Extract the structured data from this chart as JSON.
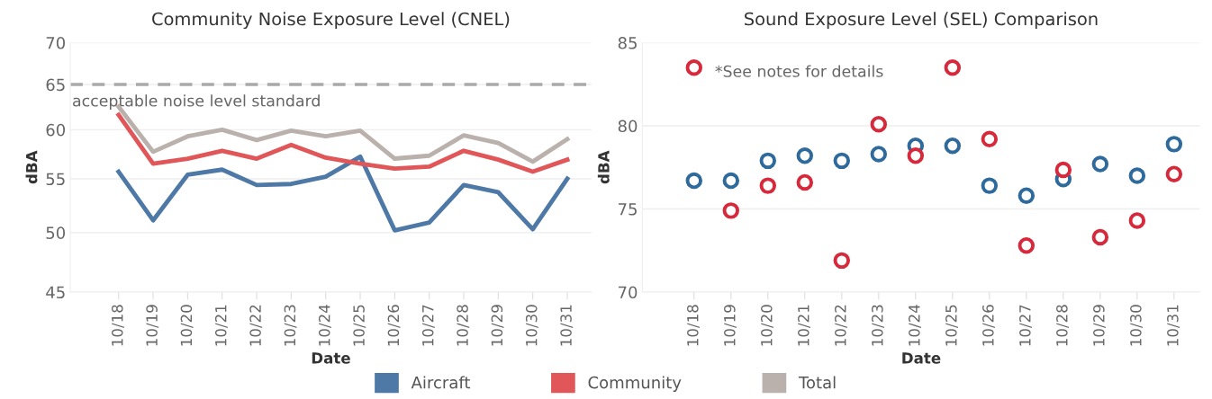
{
  "chart_data": [
    {
      "type": "line",
      "title": "Community Noise Exposure Level (CNEL)",
      "xlabel": "Date",
      "ylabel": "dBA",
      "categories": [
        "10/18",
        "10/19",
        "10/20",
        "10/21",
        "10/22",
        "10/23",
        "10/24",
        "10/25",
        "10/26",
        "10/27",
        "10/28",
        "10/29",
        "10/30",
        "10/31"
      ],
      "series": [
        {
          "name": "Aircraft",
          "color": "#4e79a7",
          "values": [
            55.7,
            51.1,
            55.4,
            55.9,
            54.4,
            54.5,
            55.2,
            57.2,
            50.2,
            50.9,
            54.4,
            53.7,
            50.3,
            55.0
          ]
        },
        {
          "name": "Community",
          "color": "#e15759",
          "values": [
            61.6,
            56.5,
            57.0,
            57.8,
            57.0,
            58.4,
            57.1,
            56.5,
            56.0,
            56.2,
            57.8,
            56.9,
            55.7,
            56.9
          ]
        },
        {
          "name": "Total",
          "color": "#bab0ac",
          "values": [
            62.5,
            57.7,
            59.3,
            60.0,
            58.9,
            59.9,
            59.3,
            59.9,
            57.0,
            57.3,
            59.4,
            58.6,
            56.7,
            59.0
          ]
        }
      ],
      "log": "y",
      "ylim": [
        45,
        70
      ],
      "yticks": [
        45,
        50,
        55,
        60,
        65,
        70
      ],
      "grid": "y",
      "legend": "bottom",
      "line_style": "solid",
      "marker": "none",
      "ref_lines": [
        {
          "axis": "y",
          "value": 65,
          "label": "acceptable noise level standard",
          "color": "#a9a9a9",
          "line_style": "dashed"
        }
      ]
    },
    {
      "type": "scatter",
      "title": "Sound Exposure Level (SEL) Comparison",
      "xlabel": "Date",
      "ylabel": "dBA",
      "categories": [
        "10/18",
        "10/19",
        "10/20",
        "10/21",
        "10/22",
        "10/23",
        "10/24",
        "10/25",
        "10/26",
        "10/27",
        "10/28",
        "10/29",
        "10/30",
        "10/31"
      ],
      "series": [
        {
          "color": "#2e6a9b",
          "values": [
            76.7,
            76.7,
            77.9,
            78.2,
            77.9,
            78.3,
            78.8,
            78.8,
            76.4,
            75.8,
            76.8,
            77.7,
            77.0,
            78.9
          ]
        },
        {
          "color": "#d62a3c",
          "values": [
            83.5,
            74.9,
            76.4,
            76.6,
            71.9,
            80.1,
            78.2,
            83.5,
            79.2,
            72.8,
            77.35,
            73.3,
            74.3,
            77.1
          ]
        }
      ],
      "ylim": [
        70,
        85
      ],
      "yticks": [
        70,
        75,
        80,
        85
      ],
      "grid": "y",
      "marker": "circle",
      "annotations": [
        "*See notes for details"
      ]
    }
  ]
}
